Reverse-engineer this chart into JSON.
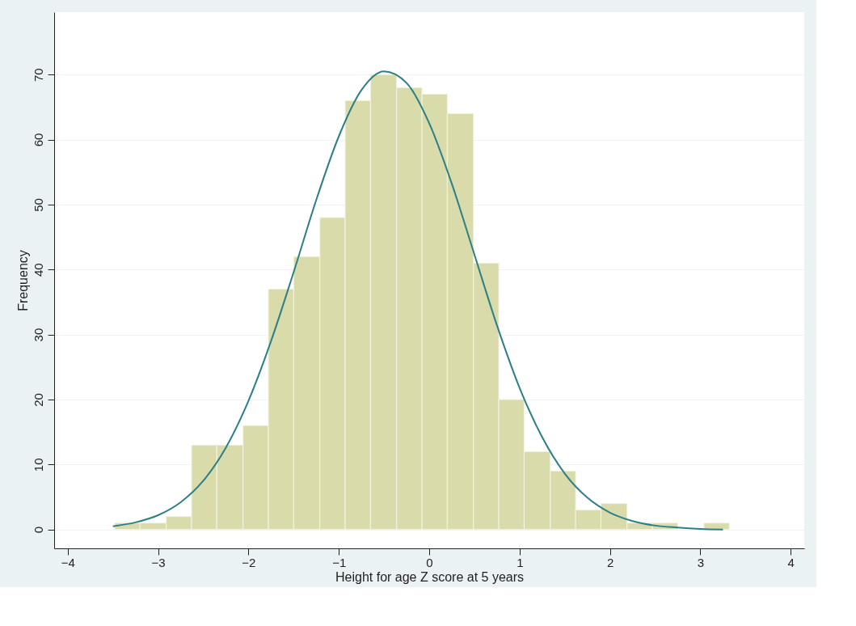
{
  "chart_data": {
    "type": "histogram",
    "xlabel": "Height for age Z score at 5 years",
    "ylabel": "Frequency",
    "bins": [
      -3.48,
      -3.2,
      -2.91,
      -2.63,
      -2.35,
      -2.06,
      -1.78,
      -1.5,
      -1.21,
      -0.93,
      -0.65,
      -0.36,
      -0.08,
      0.2,
      0.49,
      0.77,
      1.05,
      1.34,
      1.62,
      1.9,
      2.19,
      2.47,
      2.75,
      3.04,
      3.32
    ],
    "values": [
      1,
      1,
      2,
      13,
      13,
      16,
      37,
      42,
      48,
      66,
      70,
      68,
      67,
      64,
      41,
      20,
      12,
      9,
      3,
      4,
      1,
      1,
      0,
      1
    ],
    "color": "#d9dbaa",
    "series": [
      {
        "type": "line",
        "color": "#2b7f86",
        "x": [
          -3.5,
          -3.25,
          -3.0,
          -2.75,
          -2.5,
          -2.25,
          -2.0,
          -1.75,
          -1.5,
          -1.25,
          -1.0,
          -0.75,
          -0.5,
          -0.25,
          0,
          0.25,
          0.5,
          0.75,
          1.0,
          1.25,
          1.5,
          1.75,
          2.0,
          2.25,
          2.5,
          2.75,
          3.0,
          3.25
        ],
        "values": [
          0.5,
          1.1,
          2.2,
          4.2,
          7.5,
          12.6,
          19.8,
          29.0,
          39.6,
          50.7,
          60.5,
          67.6,
          70.5,
          68.7,
          62.5,
          53.2,
          42.3,
          31.4,
          21.8,
          14.2,
          8.6,
          4.9,
          2.6,
          1.3,
          0.6,
          0.3,
          0.1,
          0.0
        ]
      }
    ],
    "xlim": [
      -4.15,
      4.15
    ],
    "xticks": [
      -4,
      -3,
      -2,
      -1,
      0,
      1,
      2,
      3,
      4
    ],
    "ylim": [
      -2.9,
      79.6
    ],
    "yticks": [
      0,
      10,
      20,
      30,
      40,
      50,
      60,
      70
    ],
    "grid": "y"
  }
}
